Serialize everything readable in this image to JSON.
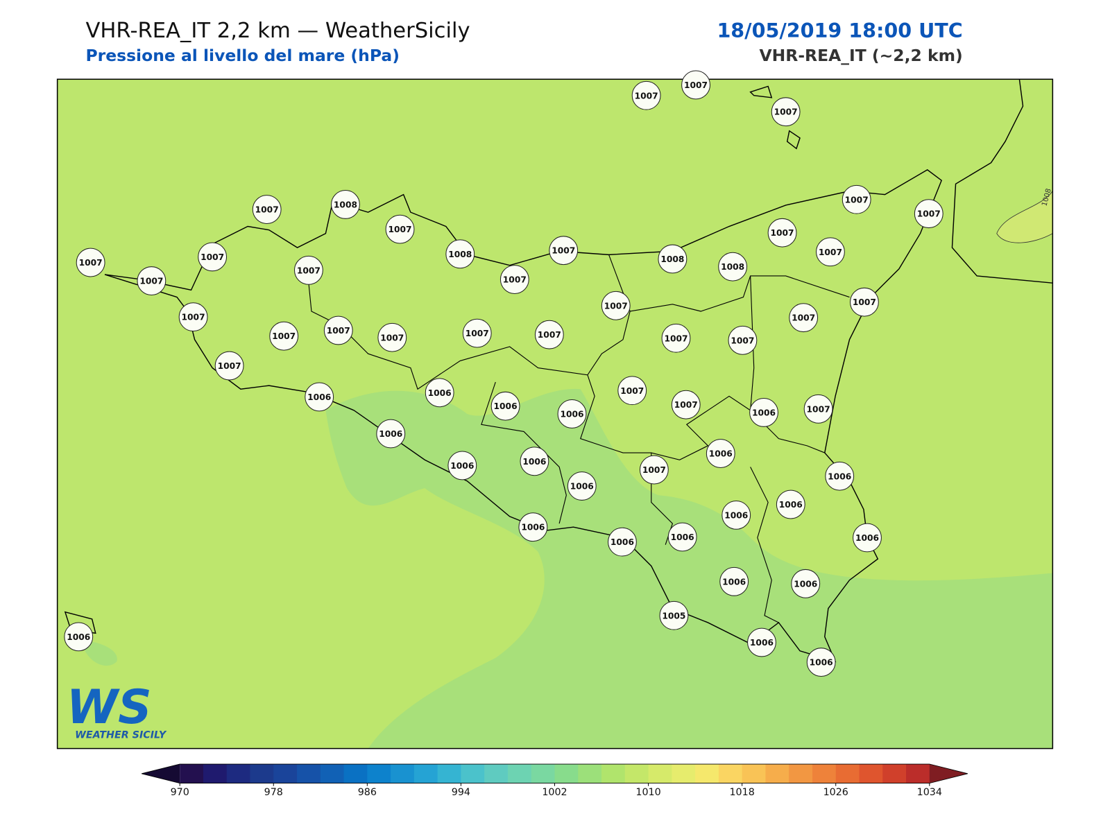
{
  "header": {
    "title": "VHR-REA_IT 2,2 km — WeatherSicily",
    "subtitle": "Pressione al livello del mare (hPa)",
    "datetime": "18/05/2019 18:00 UTC",
    "model": "VHR-REA_IT (~2,2 km)"
  },
  "map": {
    "stations": [
      1007,
      1007,
      1007,
      1007,
      1008,
      1007,
      1007,
      1007,
      1007,
      1007,
      1007,
      1008,
      1007,
      1007,
      1007,
      1007,
      1007,
      1008,
      1008,
      1007,
      1007,
      1007,
      1007,
      1007,
      1007,
      1007,
      1007,
      1007,
      1007,
      1007,
      1007,
      1006,
      1006,
      1007,
      1006,
      1006,
      1007,
      1006,
      1007,
      1006,
      1006,
      1006,
      1006,
      1007,
      1006,
      1006,
      1006,
      1006,
      1006,
      1006,
      1006,
      1006,
      1006,
      1006,
      1005,
      1006,
      1006,
      1006
    ],
    "contour_label": "1008",
    "background_color": "#bde66d",
    "low_color": "#a8e07a",
    "high_color": "#d0e873"
  },
  "colorbar": {
    "range": [
      970,
      1034
    ],
    "ticks": [
      970,
      978,
      986,
      994,
      1002,
      1010,
      1018,
      1026,
      1034
    ],
    "colors": [
      "#23104f",
      "#1f1a6e",
      "#1d2a80",
      "#1c3a8c",
      "#1a449a",
      "#1652a8",
      "#1161b5",
      "#0a71c3",
      "#0d82cc",
      "#1992d0",
      "#25a3d4",
      "#35b4d2",
      "#4bc2cb",
      "#5fcbc0",
      "#6dd3b2",
      "#7ad8a1",
      "#88dc8c",
      "#9ce07a",
      "#b0e46c",
      "#c4e769",
      "#d6ea6a",
      "#e6ec6d",
      "#f5e86c",
      "#fad562",
      "#f9c356",
      "#f6ad4b",
      "#f29742",
      "#ee823a",
      "#e86c33",
      "#df552e",
      "#d0402b",
      "#bb2d2a"
    ],
    "under_color": "#150a33",
    "over_color": "#7f1d22"
  },
  "logo": {
    "mark": "WS",
    "name": "WEATHER SICILY"
  }
}
